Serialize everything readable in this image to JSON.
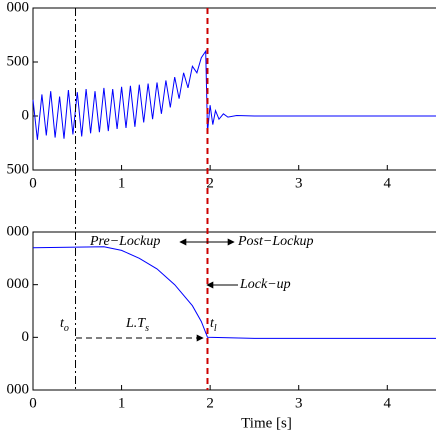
{
  "chart_data": [
    {
      "type": "line",
      "xlim": [
        0,
        4.55
      ],
      "ylim": [
        -500,
        1000
      ],
      "xticks": [
        0,
        1,
        2,
        3,
        4
      ],
      "yticks": [
        {
          "value": -500,
          "label": "500"
        },
        0,
        {
          "value": 500,
          "label": "500"
        },
        {
          "value": 1000,
          "label": "000"
        }
      ],
      "series": [
        {
          "color": "#0000ff",
          "x": [
            0,
            0.05,
            0.1,
            0.15,
            0.2,
            0.25,
            0.3,
            0.35,
            0.4,
            0.45,
            0.5,
            0.55,
            0.6,
            0.65,
            0.7,
            0.75,
            0.8,
            0.85,
            0.9,
            0.95,
            1.0,
            1.05,
            1.1,
            1.15,
            1.2,
            1.25,
            1.3,
            1.35,
            1.4,
            1.45,
            1.5,
            1.55,
            1.6,
            1.65,
            1.7,
            1.75,
            1.8,
            1.85,
            1.9,
            1.95,
            1.97,
            2.0,
            2.03,
            2.06,
            2.1,
            2.15,
            2.2,
            2.3,
            2.5,
            3,
            4.55
          ],
          "values": [
            150,
            -220,
            200,
            -180,
            230,
            -200,
            180,
            -210,
            240,
            -170,
            220,
            -190,
            250,
            -160,
            230,
            -150,
            260,
            -140,
            250,
            -120,
            270,
            -110,
            280,
            -100,
            290,
            -60,
            300,
            -30,
            310,
            20,
            330,
            80,
            360,
            160,
            400,
            260,
            460,
            400,
            540,
            600,
            -150,
            100,
            -80,
            50,
            -30,
            20,
            -10,
            5,
            0,
            0,
            0
          ]
        }
      ]
    },
    {
      "type": "line",
      "xlim": [
        0,
        4.55
      ],
      "ylim": [
        -1000,
        2000
      ],
      "xticks": [
        0,
        1,
        2,
        3,
        4
      ],
      "yticks": [
        {
          "value": -1000,
          "label": "000"
        },
        0,
        {
          "value": 1000,
          "label": "000"
        },
        {
          "value": 2000,
          "label": "000"
        }
      ],
      "xlabel": "Time [s]",
      "series": [
        {
          "color": "#0000ff",
          "x": [
            0,
            0.8,
            1.0,
            1.2,
            1.4,
            1.6,
            1.8,
            1.9,
            1.97,
            2.5,
            4.55
          ],
          "values": [
            1700,
            1720,
            1650,
            1500,
            1300,
            1000,
            600,
            300,
            0,
            -20,
            -20
          ]
        }
      ],
      "vlines": [
        {
          "x": 0.48,
          "color": "#000000"
        },
        {
          "x": 1.97,
          "color": "#cc0000"
        }
      ],
      "annotations": {
        "pre": "Pre−Lockup",
        "post": "Post−Lockup",
        "lock": "Lock−up",
        "to": "t",
        "to_sub": "o",
        "lts": "L.T",
        "lts_sub": "s",
        "tl": "t",
        "tl_sub": "l"
      }
    }
  ]
}
